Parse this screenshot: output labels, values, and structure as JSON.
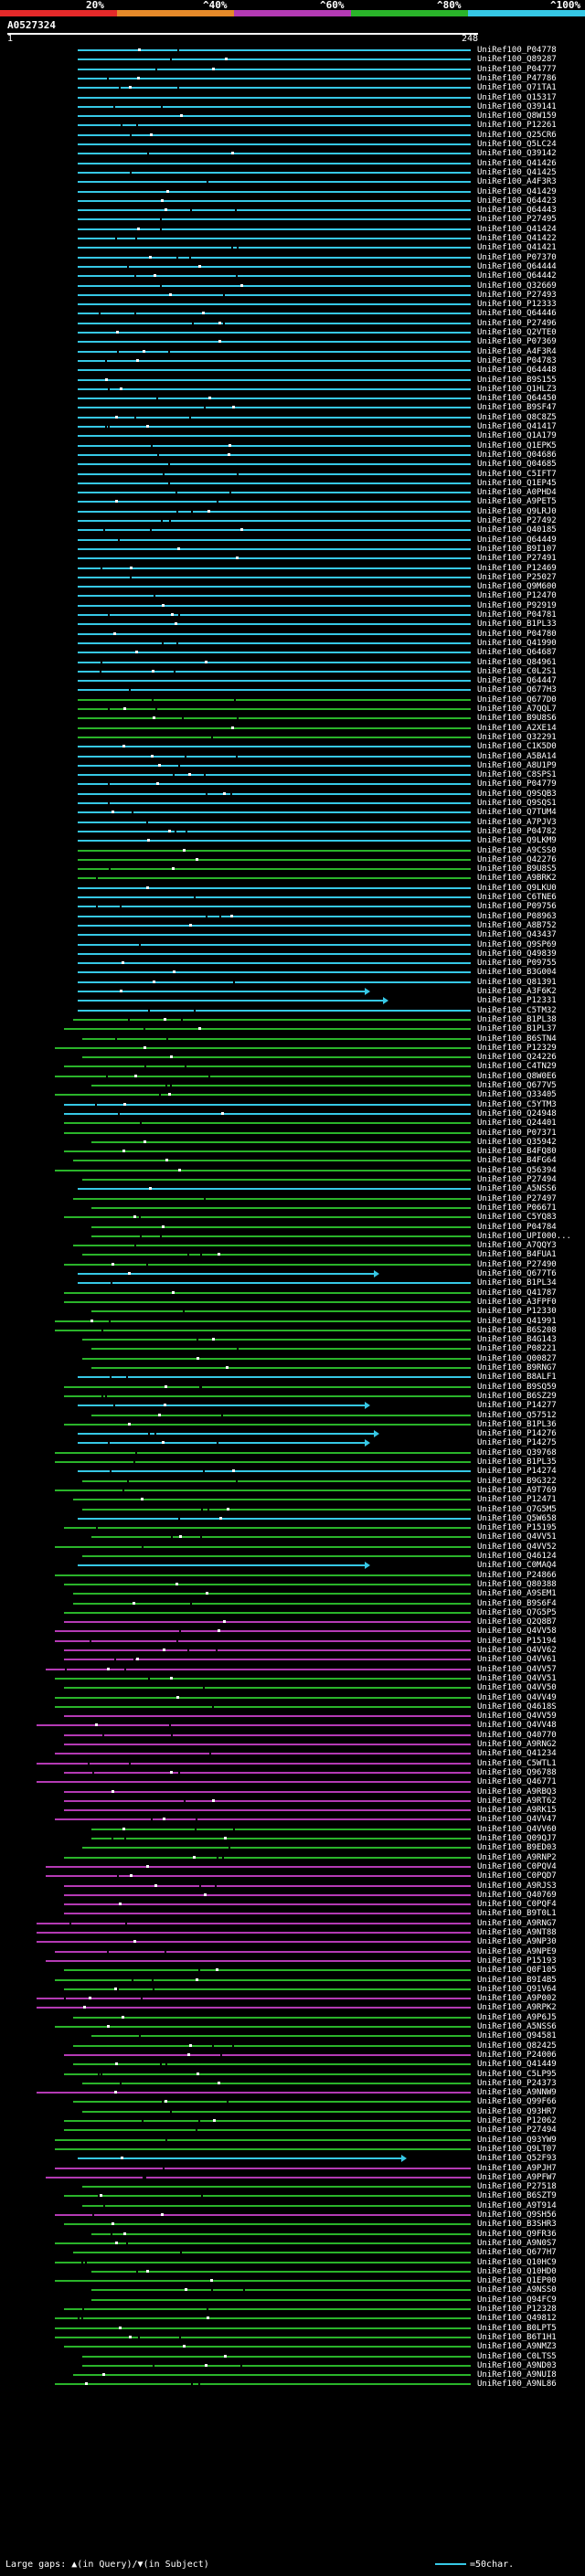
{
  "legend": {
    "labels": [
      "20%",
      "^40%",
      "^60%",
      "^80%",
      "^100%"
    ],
    "colors": [
      "#e62a2a",
      "#e68a2a",
      "#b43ab4",
      "#2ab42a",
      "#36c8e6"
    ]
  },
  "header": {
    "query_id": "A0527324",
    "ruler_start": "1",
    "ruler_end": "248"
  },
  "footer": {
    "large_gaps_label": "Large gaps:",
    "in_query": "(in Query)",
    "slash": "/",
    "in_subject": "(in Subject)",
    "scale_label": "=50char."
  },
  "hits": [
    {
      "id": "UniRef100_P04778",
      "color": "#36c8e6"
    },
    {
      "id": "UniRef100_Q89287",
      "color": "#36c8e6"
    },
    {
      "id": "UniRef100_P04777",
      "color": "#36c8e6"
    },
    {
      "id": "UniRef100_P47786",
      "color": "#36c8e6"
    },
    {
      "id": "UniRef100_Q71TA1",
      "color": "#36c8e6"
    },
    {
      "id": "UniRef100_Q15317",
      "color": "#36c8e6"
    },
    {
      "id": "UniRef100_Q39141",
      "color": "#36c8e6"
    },
    {
      "id": "UniRef100_Q8W159",
      "color": "#36c8e6"
    },
    {
      "id": "UniRef100_P12261",
      "color": "#36c8e6"
    },
    {
      "id": "UniRef100_Q25CR6",
      "color": "#36c8e6"
    },
    {
      "id": "UniRef100_Q5LC24",
      "color": "#36c8e6"
    },
    {
      "id": "UniRef100_Q39142",
      "color": "#36c8e6"
    },
    {
      "id": "UniRef100_Q41426",
      "color": "#36c8e6"
    },
    {
      "id": "UniRef100_Q41425",
      "color": "#36c8e6"
    },
    {
      "id": "UniRef100_A4F3R3",
      "color": "#36c8e6"
    },
    {
      "id": "UniRef100_Q41429",
      "color": "#36c8e6"
    },
    {
      "id": "UniRef100_Q64423",
      "color": "#36c8e6"
    },
    {
      "id": "UniRef100_Q64443",
      "color": "#36c8e6"
    },
    {
      "id": "UniRef100_P27495",
      "color": "#36c8e6"
    },
    {
      "id": "UniRef100_Q41424",
      "color": "#36c8e6"
    },
    {
      "id": "UniRef100_Q41422",
      "color": "#36c8e6"
    },
    {
      "id": "UniRef100_Q41421",
      "color": "#36c8e6"
    },
    {
      "id": "UniRef100_P07370",
      "color": "#36c8e6"
    },
    {
      "id": "UniRef100_Q64444",
      "color": "#36c8e6"
    },
    {
      "id": "UniRef100_Q64442",
      "color": "#36c8e6"
    },
    {
      "id": "UniRef100_Q32669",
      "color": "#36c8e6"
    },
    {
      "id": "UniRef100_P27493",
      "color": "#36c8e6"
    },
    {
      "id": "UniRef100_P12333",
      "color": "#36c8e6"
    },
    {
      "id": "UniRef100_Q64446",
      "color": "#36c8e6"
    },
    {
      "id": "UniRef100_P27496",
      "color": "#36c8e6"
    },
    {
      "id": "UniRef100_Q2VTE0",
      "color": "#36c8e6"
    },
    {
      "id": "UniRef100_P07369",
      "color": "#36c8e6"
    },
    {
      "id": "UniRef100_A4F3R4",
      "color": "#36c8e6"
    },
    {
      "id": "UniRef100_P04783",
      "color": "#36c8e6"
    },
    {
      "id": "UniRef100_Q64448",
      "color": "#36c8e6"
    },
    {
      "id": "UniRef100_B9S155",
      "color": "#36c8e6"
    },
    {
      "id": "UniRef100_Q1HLZ3",
      "color": "#36c8e6"
    },
    {
      "id": "UniRef100_Q64450",
      "color": "#36c8e6"
    },
    {
      "id": "UniRef100_B9SF47",
      "color": "#36c8e6"
    },
    {
      "id": "UniRef100_Q8C8Z5",
      "color": "#36c8e6"
    },
    {
      "id": "UniRef100_Q41417",
      "color": "#36c8e6"
    },
    {
      "id": "UniRef100_Q1A179",
      "color": "#36c8e6"
    },
    {
      "id": "UniRef100_Q1EPK5",
      "color": "#36c8e6"
    },
    {
      "id": "UniRef100_Q04686",
      "color": "#36c8e6"
    },
    {
      "id": "UniRef100_Q04685",
      "color": "#36c8e6"
    },
    {
      "id": "UniRef100_C5IFT7",
      "color": "#36c8e6"
    },
    {
      "id": "UniRef100_Q1EP45",
      "color": "#36c8e6"
    },
    {
      "id": "UniRef100_A0PHD4",
      "color": "#36c8e6"
    },
    {
      "id": "UniRef100_A9PET5",
      "color": "#36c8e6"
    },
    {
      "id": "UniRef100_Q9LRJ0",
      "color": "#36c8e6"
    },
    {
      "id": "UniRef100_P27492",
      "color": "#36c8e6"
    },
    {
      "id": "UniRef100_Q40185",
      "color": "#36c8e6"
    },
    {
      "id": "UniRef100_Q64449",
      "color": "#36c8e6"
    },
    {
      "id": "UniRef100_B9I107",
      "color": "#36c8e6"
    },
    {
      "id": "UniRef100_P27491",
      "color": "#36c8e6"
    },
    {
      "id": "UniRef100_P12469",
      "color": "#36c8e6"
    },
    {
      "id": "UniRef100_P25027",
      "color": "#36c8e6"
    },
    {
      "id": "UniRef100_Q9M600",
      "color": "#36c8e6"
    },
    {
      "id": "UniRef100_P12470",
      "color": "#36c8e6"
    },
    {
      "id": "UniRef100_P92919",
      "color": "#36c8e6"
    },
    {
      "id": "UniRef100_P04781",
      "color": "#36c8e6"
    },
    {
      "id": "UniRef100_B1PL33",
      "color": "#36c8e6"
    },
    {
      "id": "UniRef100_P04780",
      "color": "#36c8e6"
    },
    {
      "id": "UniRef100_Q41990",
      "color": "#36c8e6"
    },
    {
      "id": "UniRef100_Q64687",
      "color": "#36c8e6"
    },
    {
      "id": "UniRef100_Q84961",
      "color": "#36c8e6"
    },
    {
      "id": "UniRef100_C0L2S1",
      "color": "#36c8e6"
    },
    {
      "id": "UniRef100_Q64447",
      "color": "#36c8e6"
    },
    {
      "id": "UniRef100_Q677H3",
      "color": "#36c8e6"
    },
    {
      "id": "UniRef100_Q677D0",
      "color": "#2ab42a"
    },
    {
      "id": "UniRef100_A7QQL7",
      "color": "#2ab42a"
    },
    {
      "id": "UniRef100_B9U8S6",
      "color": "#2ab42a"
    },
    {
      "id": "UniRef100_A2XE14",
      "color": "#2ab42a"
    },
    {
      "id": "UniRef100_Q32291",
      "color": "#2ab42a"
    },
    {
      "id": "UniRef100_C1K5D0",
      "color": "#36c8e6"
    },
    {
      "id": "UniRef100_A5BA14",
      "color": "#36c8e6"
    },
    {
      "id": "UniRef100_A8U1P9",
      "color": "#36c8e6"
    },
    {
      "id": "UniRef100_C8SPS1",
      "color": "#36c8e6"
    },
    {
      "id": "UniRef100_P04779",
      "color": "#36c8e6"
    },
    {
      "id": "UniRef100_Q9SQB3",
      "color": "#36c8e6"
    },
    {
      "id": "UniRef100_Q9SQS1",
      "color": "#36c8e6"
    },
    {
      "id": "UniRef100_Q7TUM4",
      "color": "#36c8e6"
    },
    {
      "id": "UniRef100_A7PJV3",
      "color": "#36c8e6"
    },
    {
      "id": "UniRef100_P04782",
      "color": "#36c8e6"
    },
    {
      "id": "UniRef100_Q9LKM9",
      "color": "#36c8e6"
    },
    {
      "id": "UniRef100_A9CSS0",
      "color": "#2ab42a"
    },
    {
      "id": "UniRef100_Q42276",
      "color": "#2ab42a"
    },
    {
      "id": "UniRef100_B9U8S5",
      "color": "#2ab42a"
    },
    {
      "id": "UniRef100_A9BRK2",
      "color": "#2ab42a"
    },
    {
      "id": "UniRef100_Q9LKU0",
      "color": "#36c8e6"
    },
    {
      "id": "UniRef100_C6TNE6",
      "color": "#36c8e6"
    },
    {
      "id": "UniRef100_P09756",
      "color": "#36c8e6"
    },
    {
      "id": "UniRef100_P08963",
      "color": "#36c8e6"
    },
    {
      "id": "UniRef100_A8B752",
      "color": "#36c8e6"
    },
    {
      "id": "UniRef100_Q43437",
      "color": "#36c8e6"
    },
    {
      "id": "UniRef100_Q9SP69",
      "color": "#36c8e6"
    },
    {
      "id": "UniRef100_Q49839",
      "color": "#36c8e6"
    },
    {
      "id": "UniRef100_P09755",
      "color": "#36c8e6"
    },
    {
      "id": "UniRef100_B3G004",
      "color": "#36c8e6"
    },
    {
      "id": "UniRef100_Q81391",
      "color": "#36c8e6"
    },
    {
      "id": "UniRef100_A3F6K2",
      "color": "#36c8e6"
    },
    {
      "id": "UniRef100_P12331",
      "color": "#36c8e6"
    },
    {
      "id": "UniRef100_C5TM32",
      "color": "#36c8e6"
    },
    {
      "id": "UniRef100_B1PL38",
      "color": "#2ab42a"
    },
    {
      "id": "UniRef100_B1PL37",
      "color": "#2ab42a"
    },
    {
      "id": "UniRef100_B6STN4",
      "color": "#2ab42a"
    },
    {
      "id": "UniRef100_P12329",
      "color": "#2ab42a"
    },
    {
      "id": "UniRef100_Q24226",
      "color": "#2ab42a"
    },
    {
      "id": "UniRef100_C4TN29",
      "color": "#2ab42a"
    },
    {
      "id": "UniRef100_Q8W0E6",
      "color": "#2ab42a"
    },
    {
      "id": "UniRef100_Q677V5",
      "color": "#2ab42a"
    },
    {
      "id": "UniRef100_Q33405",
      "color": "#2ab42a"
    },
    {
      "id": "UniRef100_C5YTM3",
      "color": "#36c8e6"
    },
    {
      "id": "UniRef100_Q24948",
      "color": "#36c8e6"
    },
    {
      "id": "UniRef100_Q24401",
      "color": "#2ab42a"
    },
    {
      "id": "UniRef100_P07371",
      "color": "#2ab42a"
    },
    {
      "id": "UniRef100_Q35942",
      "color": "#2ab42a"
    },
    {
      "id": "UniRef100_B4FQ80",
      "color": "#2ab42a"
    },
    {
      "id": "UniRef100_B4FG64",
      "color": "#2ab42a"
    },
    {
      "id": "UniRef100_Q56394",
      "color": "#2ab42a"
    },
    {
      "id": "UniRef100_P27494",
      "color": "#2ab42a"
    },
    {
      "id": "UniRef100_A5NSS6",
      "color": "#36c8e6"
    },
    {
      "id": "UniRef100_P27497",
      "color": "#2ab42a"
    },
    {
      "id": "UniRef100_P06671",
      "color": "#2ab42a"
    },
    {
      "id": "UniRef100_C5YQ83",
      "color": "#2ab42a"
    },
    {
      "id": "UniRef100_P04784",
      "color": "#2ab42a"
    },
    {
      "id": "UniRef100_UPI000...",
      "color": "#2ab42a"
    },
    {
      "id": "UniRef100_A7QQY3",
      "color": "#2ab42a"
    },
    {
      "id": "UniRef100_B4FUA1",
      "color": "#2ab42a"
    },
    {
      "id": "UniRef100_P27490",
      "color": "#2ab42a"
    },
    {
      "id": "UniRef100_Q677T6",
      "color": "#36c8e6"
    },
    {
      "id": "UniRef100_B1PL34",
      "color": "#36c8e6"
    },
    {
      "id": "UniRef100_Q41787",
      "color": "#2ab42a"
    },
    {
      "id": "UniRef100_A3FPF0",
      "color": "#2ab42a"
    },
    {
      "id": "UniRef100_P12330",
      "color": "#2ab42a"
    },
    {
      "id": "UniRef100_Q41991",
      "color": "#2ab42a"
    },
    {
      "id": "UniRef100_B6S208",
      "color": "#2ab42a"
    },
    {
      "id": "UniRef100_B4G143",
      "color": "#2ab42a"
    },
    {
      "id": "UniRef100_P08221",
      "color": "#2ab42a"
    },
    {
      "id": "UniRef100_Q00827",
      "color": "#2ab42a"
    },
    {
      "id": "UniRef100_B9RNG7",
      "color": "#2ab42a"
    },
    {
      "id": "UniRef100_B8ALF1",
      "color": "#36c8e6"
    },
    {
      "id": "UniRef100_B9SQ59",
      "color": "#2ab42a"
    },
    {
      "id": "UniRef100_B6SZ29",
      "color": "#2ab42a"
    },
    {
      "id": "UniRef100_P14277",
      "color": "#36c8e6"
    },
    {
      "id": "UniRef100_Q57512",
      "color": "#2ab42a"
    },
    {
      "id": "UniRef100_B1PL36",
      "color": "#2ab42a"
    },
    {
      "id": "UniRef100_P14276",
      "color": "#36c8e6"
    },
    {
      "id": "UniRef100_P14275",
      "color": "#36c8e6"
    },
    {
      "id": "UniRef100_Q39768",
      "color": "#2ab42a"
    },
    {
      "id": "UniRef100_B1PL35",
      "color": "#2ab42a"
    },
    {
      "id": "UniRef100_P14274",
      "color": "#36c8e6"
    },
    {
      "id": "UniRef100_B9G322",
      "color": "#2ab42a"
    },
    {
      "id": "UniRef100_A9T769",
      "color": "#2ab42a"
    },
    {
      "id": "UniRef100_P12471",
      "color": "#2ab42a"
    },
    {
      "id": "UniRef100_Q7G5M5",
      "color": "#2ab42a"
    },
    {
      "id": "UniRef100_Q5W658",
      "color": "#36c8e6"
    },
    {
      "id": "UniRef100_P15195",
      "color": "#2ab42a"
    },
    {
      "id": "UniRef100_Q4VV51",
      "color": "#2ab42a"
    },
    {
      "id": "UniRef100_Q4VV52",
      "color": "#2ab42a"
    },
    {
      "id": "UniRef100_Q46124",
      "color": "#2ab42a"
    },
    {
      "id": "UniRef100_C0MAQ4",
      "color": "#36c8e6"
    },
    {
      "id": "UniRef100_P24866",
      "color": "#2ab42a"
    },
    {
      "id": "UniRef100_Q80388",
      "color": "#2ab42a"
    },
    {
      "id": "UniRef100_A9SEM1",
      "color": "#2ab42a"
    },
    {
      "id": "UniRef100_B9S6F4",
      "color": "#2ab42a"
    },
    {
      "id": "UniRef100_Q7G5P5",
      "color": "#2ab42a"
    },
    {
      "id": "UniRef100_Q2Q8B7",
      "color": "#b43ab4"
    },
    {
      "id": "UniRef100_Q4VV58",
      "color": "#b43ab4"
    },
    {
      "id": "UniRef100_P15194",
      "color": "#b43ab4"
    },
    {
      "id": "UniRef100_Q4VV62",
      "color": "#b43ab4"
    },
    {
      "id": "UniRef100_Q4VV61",
      "color": "#b43ab4"
    },
    {
      "id": "UniRef100_Q4VV57",
      "color": "#b43ab4"
    },
    {
      "id": "UniRef100_Q4VV51",
      "color": "#2ab42a"
    },
    {
      "id": "UniRef100_Q4VV50",
      "color": "#2ab42a"
    },
    {
      "id": "UniRef100_Q4VV49",
      "color": "#2ab42a"
    },
    {
      "id": "UniRef100_Q4618S",
      "color": "#2ab42a"
    },
    {
      "id": "UniRef100_Q4VV59",
      "color": "#b43ab4"
    },
    {
      "id": "UniRef100_Q4VV48",
      "color": "#b43ab4"
    },
    {
      "id": "UniRef100_Q40770",
      "color": "#b43ab4"
    },
    {
      "id": "UniRef100_A9RNG2",
      "color": "#b43ab4"
    },
    {
      "id": "UniRef100_Q41234",
      "color": "#b43ab4"
    },
    {
      "id": "UniRef100_C5WTL1",
      "color": "#b43ab4"
    },
    {
      "id": "UniRef100_Q96788",
      "color": "#b43ab4"
    },
    {
      "id": "UniRef100_Q46771",
      "color": "#b43ab4"
    },
    {
      "id": "UniRef100_A9RBQ3",
      "color": "#b43ab4"
    },
    {
      "id": "UniRef100_A9RT62",
      "color": "#b43ab4"
    },
    {
      "id": "UniRef100_A9RK15",
      "color": "#b43ab4"
    },
    {
      "id": "UniRef100_Q4VV47",
      "color": "#b43ab4"
    },
    {
      "id": "UniRef100_Q4VV60",
      "color": "#2ab42a"
    },
    {
      "id": "UniRef100_Q09QJ7",
      "color": "#2ab42a"
    },
    {
      "id": "UniRef100_B9ED03",
      "color": "#2ab42a"
    },
    {
      "id": "UniRef100_A9RNP2",
      "color": "#2ab42a"
    },
    {
      "id": "UniRef100_C0PQV4",
      "color": "#b43ab4"
    },
    {
      "id": "UniRef100_C0PQD7",
      "color": "#b43ab4"
    },
    {
      "id": "UniRef100_A9RJS3",
      "color": "#b43ab4"
    },
    {
      "id": "UniRef100_Q40769",
      "color": "#b43ab4"
    },
    {
      "id": "UniRef100_C0PQF4",
      "color": "#b43ab4"
    },
    {
      "id": "UniRef100_B9T0L1",
      "color": "#b43ab4"
    },
    {
      "id": "UniRef100_A9RNG7",
      "color": "#b43ab4"
    },
    {
      "id": "UniRef100_A9NT88",
      "color": "#b43ab4"
    },
    {
      "id": "UniRef100_A9NP30",
      "color": "#b43ab4"
    },
    {
      "id": "UniRef100_A9NPE9",
      "color": "#b43ab4"
    },
    {
      "id": "UniRef100_P15193",
      "color": "#b43ab4"
    },
    {
      "id": "UniRef100_Q0F105",
      "color": "#2ab42a"
    },
    {
      "id": "UniRef100_B9I4B5",
      "color": "#2ab42a"
    },
    {
      "id": "UniRef100_Q91V64",
      "color": "#2ab42a"
    },
    {
      "id": "UniRef100_A9P002",
      "color": "#b43ab4"
    },
    {
      "id": "UniRef100_A9RPK2",
      "color": "#b43ab4"
    },
    {
      "id": "UniRef100_A9P6J5",
      "color": "#2ab42a"
    },
    {
      "id": "UniRef100_A5NSS6",
      "color": "#2ab42a"
    },
    {
      "id": "UniRef100_Q94581",
      "color": "#2ab42a"
    },
    {
      "id": "UniRef100_Q82425",
      "color": "#2ab42a"
    },
    {
      "id": "UniRef100_P24006",
      "color": "#b43ab4"
    },
    {
      "id": "UniRef100_Q41449",
      "color": "#2ab42a"
    },
    {
      "id": "UniRef100_C5LP95",
      "color": "#2ab42a"
    },
    {
      "id": "UniRef100_P24373",
      "color": "#2ab42a"
    },
    {
      "id": "UniRef100_A9NNW9",
      "color": "#b43ab4"
    },
    {
      "id": "UniRef100_Q99F66",
      "color": "#2ab42a"
    },
    {
      "id": "UniRef100_Q93HR7",
      "color": "#2ab42a"
    },
    {
      "id": "UniRef100_P12062",
      "color": "#2ab42a"
    },
    {
      "id": "UniRef100_P27494",
      "color": "#2ab42a"
    },
    {
      "id": "UniRef100_Q93YW9",
      "color": "#2ab42a"
    },
    {
      "id": "UniRef100_Q9LT07",
      "color": "#2ab42a"
    },
    {
      "id": "UniRef100_Q52F93",
      "color": "#36c8e6"
    },
    {
      "id": "UniRef100_A9PJH7",
      "color": "#b43ab4"
    },
    {
      "id": "UniRef100_A9PFW7",
      "color": "#b43ab4"
    },
    {
      "id": "UniRef100_P27518",
      "color": "#2ab42a"
    },
    {
      "id": "UniRef100_B6SZT9",
      "color": "#2ab42a"
    },
    {
      "id": "UniRef100_A9T914",
      "color": "#2ab42a"
    },
    {
      "id": "UniRef100_Q9SH56",
      "color": "#b43ab4"
    },
    {
      "id": "UniRef100_B3SHR3",
      "color": "#2ab42a"
    },
    {
      "id": "UniRef100_Q9FR36",
      "color": "#2ab42a"
    },
    {
      "id": "UniRef100_A9N0S7",
      "color": "#2ab42a"
    },
    {
      "id": "UniRef100_Q677H7",
      "color": "#2ab42a"
    },
    {
      "id": "UniRef100_Q10HC9",
      "color": "#2ab42a"
    },
    {
      "id": "UniRef100_Q10HD0",
      "color": "#2ab42a"
    },
    {
      "id": "UniRef100_Q1EP00",
      "color": "#2ab42a"
    },
    {
      "id": "UniRef100_A9NSS0",
      "color": "#2ab42a"
    },
    {
      "id": "UniRef100_Q94FC9",
      "color": "#2ab42a"
    },
    {
      "id": "UniRef100_P12328",
      "color": "#2ab42a"
    },
    {
      "id": "UniRef100_Q49812",
      "color": "#2ab42a"
    },
    {
      "id": "UniRef100_B0LPT5",
      "color": "#2ab42a"
    },
    {
      "id": "UniRef100_B6T1H1",
      "color": "#2ab42a"
    },
    {
      "id": "UniRef100_A9NMZ3",
      "color": "#2ab42a"
    },
    {
      "id": "UniRef100_C0LTS5",
      "color": "#2ab42a"
    },
    {
      "id": "UniRef100_A9ND03",
      "color": "#2ab42a"
    },
    {
      "id": "UniRef100_A9NUI8",
      "color": "#2ab42a"
    },
    {
      "id": "UniRef100_A9NL86",
      "color": "#2ab42a"
    }
  ]
}
